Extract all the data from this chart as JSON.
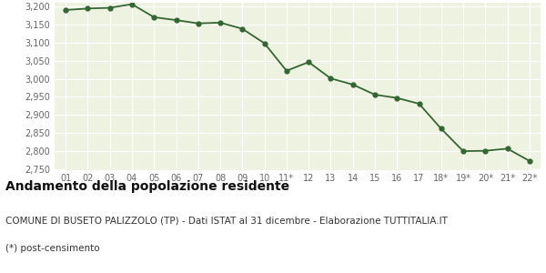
{
  "x_labels": [
    "01",
    "02",
    "03",
    "04",
    "05",
    "06",
    "07",
    "08",
    "09",
    "10",
    "11*",
    "12",
    "13",
    "14",
    "15",
    "16",
    "17",
    "18*",
    "19*",
    "20*",
    "21*",
    "22*"
  ],
  "y_values": [
    3190,
    3194,
    3196,
    3206,
    3170,
    3162,
    3153,
    3155,
    3138,
    3098,
    3022,
    3046,
    3001,
    2984,
    2956,
    2947,
    2931,
    2862,
    2800,
    2801,
    2807,
    2773
  ],
  "line_color": "#336633",
  "fill_color": "#eef2e0",
  "marker_color": "#336633",
  "fig_bg_color": "#ffffff",
  "grid_color": "#d8d8d8",
  "ylim": [
    2750,
    3210
  ],
  "yticks": [
    2750,
    2800,
    2850,
    2900,
    2950,
    3000,
    3050,
    3100,
    3150,
    3200
  ],
  "title": "Andamento della popolazione residente",
  "subtitle": "COMUNE DI BUSETO PALIZZOLO (TP) - Dati ISTAT al 31 dicembre - Elaborazione TUTTITALIA.IT",
  "footnote": "(*) post-censimento",
  "title_fontsize": 10,
  "subtitle_fontsize": 7.5,
  "footnote_fontsize": 7.5,
  "tick_fontsize": 7,
  "tick_color": "#666666"
}
